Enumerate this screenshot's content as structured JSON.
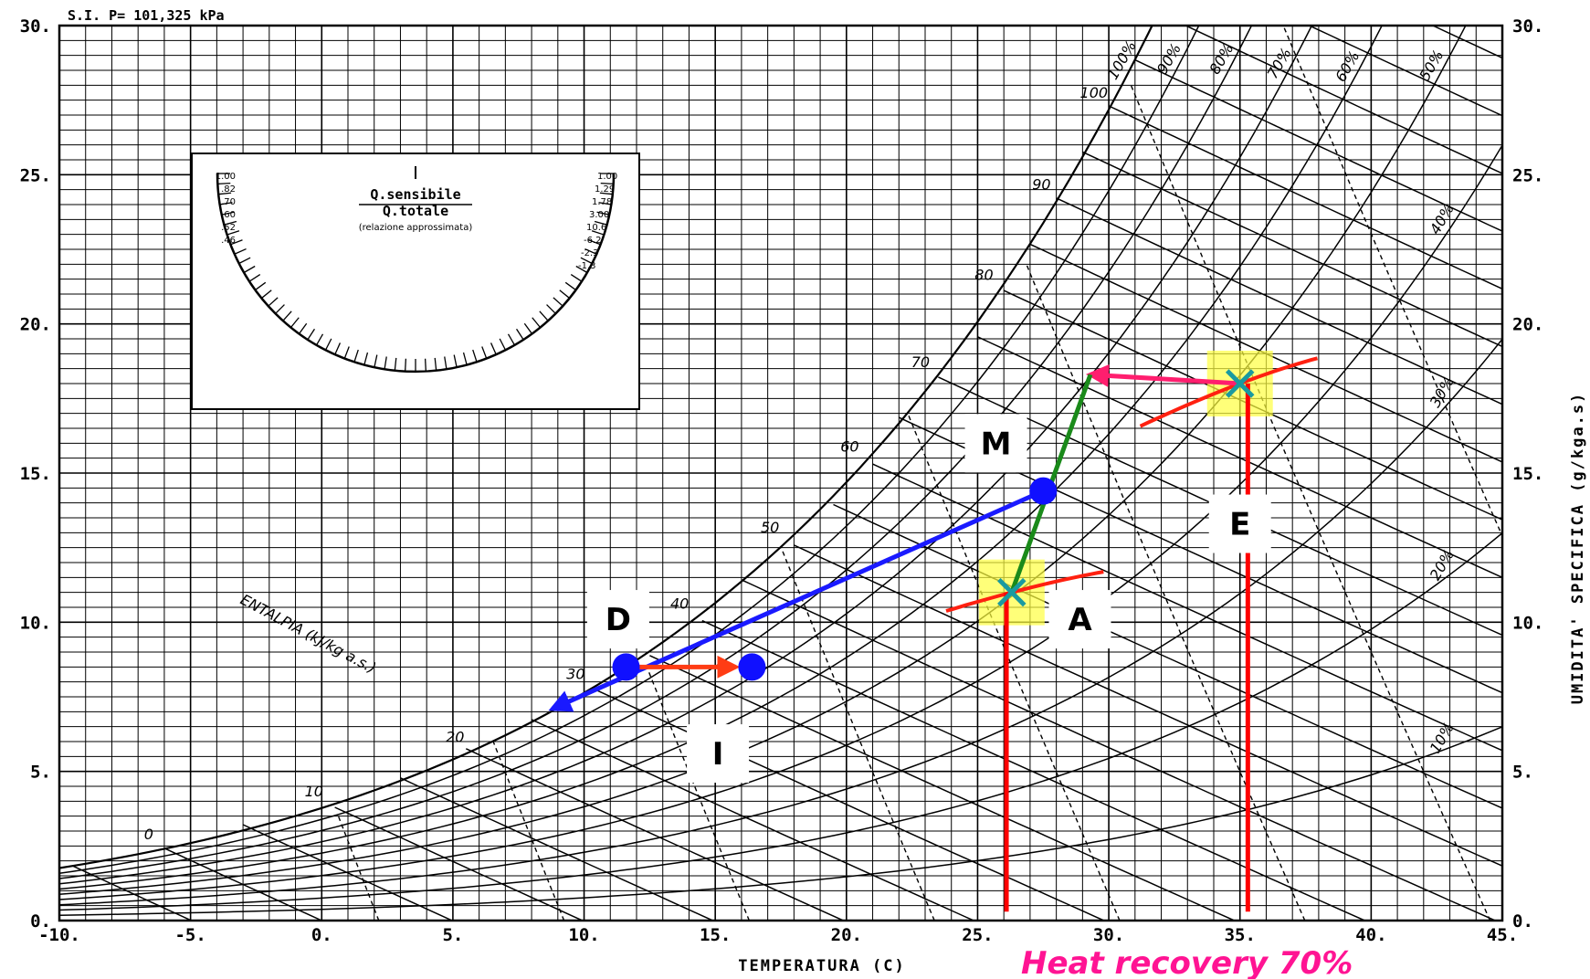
{
  "chart_data": {
    "type": "psychrometric",
    "header": "S.I. P= 101,325 kPa",
    "xlabel": "TEMPERATURA    (C)",
    "ylabel": "UMIDITA' SPECIFICA   (g/kga.s)",
    "enthalpy_label": "ENTALPIA (kJ/kg a.s.)",
    "xlim": [
      -10,
      45
    ],
    "ylim": [
      0,
      30
    ],
    "x_ticks": [
      "-10.",
      "-5.",
      "0.",
      "5.",
      "10.",
      "15.",
      "20.",
      "25.",
      "30.",
      "35.",
      "40.",
      "45."
    ],
    "y_ticks_left": [
      "0.",
      "5.",
      "10.",
      "15.",
      "20.",
      "25.",
      "30."
    ],
    "y_ticks_right": [
      "0.",
      "5.",
      "10.",
      "15.",
      "20.",
      "25.",
      "30."
    ],
    "rh_labels": [
      "10%",
      "20%",
      "30%",
      "40%",
      "50%",
      "60%",
      "70%",
      "80%",
      "90%",
      "100%"
    ],
    "enthalpy_values": [
      "0",
      "10",
      "20",
      "30",
      "40",
      "50",
      "60",
      "70",
      "80",
      "90",
      "100"
    ],
    "grid": true,
    "protractor": {
      "title": "Q.sensibile",
      "subtitle": "Q.totale",
      "note": "(relazione approssimata)",
      "left_scale": [
        "1.00",
        ".82",
        ".70",
        ".60",
        ".52",
        ".46"
      ],
      "right_scale": [
        "1.00",
        "1.29",
        "1.78",
        "3.00",
        "10.6",
        "-6.2",
        "-2.3",
        "-1.3"
      ]
    },
    "points": [
      {
        "name": "E",
        "T": 35.0,
        "W": 18.0
      },
      {
        "name": "M",
        "T": 27.5,
        "W": 14.4
      },
      {
        "name": "A",
        "T": 26.3,
        "W": 11.0
      },
      {
        "name": "D",
        "T": 11.6,
        "W": 8.5
      },
      {
        "name": "I",
        "T": 16.4,
        "W": 8.5
      }
    ],
    "processes": [
      {
        "from": "E",
        "to_T": 29.3,
        "to_W": 18.3,
        "color": "#ff1e6e"
      },
      {
        "from": "M",
        "to": "A",
        "extend_to_T": 29.3,
        "extend_to_W": 18.3,
        "color": "#1a8a1a"
      },
      {
        "from": "M",
        "to": "D",
        "extend_to_T": 8.8,
        "extend_to_W": 7.1,
        "color": "#1a1aff"
      },
      {
        "from": "D",
        "to": "I",
        "color": "#ff3c14"
      }
    ],
    "colors": {
      "highlight": "#ffff40",
      "vertical_line": "#ff0000",
      "cross": "#1a9aa0",
      "point": "#1010ff"
    },
    "footnote": "Heat recovery 70%"
  }
}
